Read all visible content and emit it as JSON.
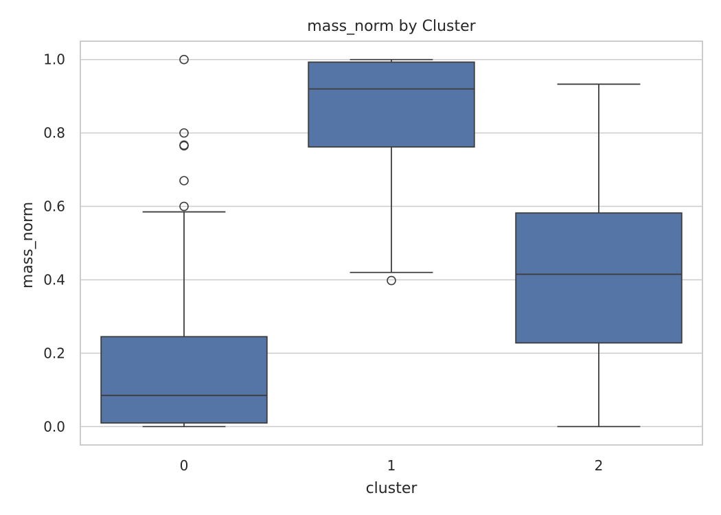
{
  "chart_data": {
    "type": "box",
    "title": "mass_norm by Cluster",
    "xlabel": "cluster",
    "ylabel": "mass_norm",
    "categories": [
      "0",
      "1",
      "2"
    ],
    "ylim": [
      -0.05,
      1.05
    ],
    "yticks": [
      0.0,
      0.2,
      0.4,
      0.6,
      0.8,
      1.0
    ],
    "ytick_labels": [
      "0.0",
      "0.2",
      "0.4",
      "0.6",
      "0.8",
      "1.0"
    ],
    "grid": true,
    "colors": {
      "box_fill": "#5575a6",
      "box_edge": "#3d3d3d",
      "grid": "#cccccc",
      "frame": "#cccccc"
    },
    "boxes": [
      {
        "category": "0",
        "whisker_low": 0.0,
        "q1": 0.01,
        "median": 0.085,
        "q3": 0.245,
        "whisker_high": 0.585,
        "outliers": [
          0.6,
          0.67,
          0.765,
          0.767,
          0.8,
          1.0
        ]
      },
      {
        "category": "1",
        "whisker_low": 0.42,
        "q1": 0.762,
        "median": 0.92,
        "q3": 0.993,
        "whisker_high": 1.0,
        "outliers": [
          0.398
        ]
      },
      {
        "category": "2",
        "whisker_low": 0.0,
        "q1": 0.228,
        "median": 0.415,
        "q3": 0.582,
        "whisker_high": 0.933,
        "outliers": []
      }
    ]
  }
}
